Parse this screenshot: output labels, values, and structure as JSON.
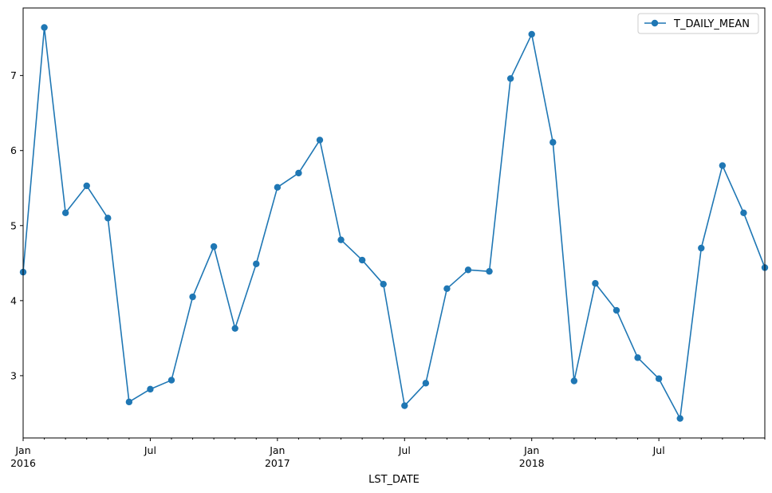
{
  "chart_data": {
    "type": "line",
    "xlabel": "LST_DATE",
    "ylabel": "",
    "x": [
      "2016-01",
      "2016-02",
      "2016-03",
      "2016-04",
      "2016-05",
      "2016-06",
      "2016-07",
      "2016-08",
      "2016-09",
      "2016-10",
      "2016-11",
      "2016-12",
      "2017-01",
      "2017-02",
      "2017-03",
      "2017-04",
      "2017-05",
      "2017-06",
      "2017-07",
      "2017-08",
      "2017-09",
      "2017-10",
      "2017-11",
      "2017-12",
      "2018-01",
      "2018-02",
      "2018-03",
      "2018-04",
      "2018-05",
      "2018-06",
      "2018-07",
      "2018-08",
      "2018-09",
      "2018-10",
      "2018-11",
      "2018-12"
    ],
    "series": [
      {
        "name": "T_DAILY_MEAN",
        "color": "#1f77b4",
        "marker": "circle",
        "values": [
          4.38,
          7.64,
          5.17,
          5.53,
          5.1,
          2.65,
          2.82,
          2.94,
          4.05,
          4.72,
          3.63,
          4.49,
          5.51,
          5.7,
          6.14,
          4.81,
          4.54,
          4.22,
          2.6,
          2.9,
          4.16,
          4.41,
          4.39,
          6.96,
          7.55,
          6.11,
          2.93,
          4.23,
          3.87,
          3.24,
          2.96,
          2.43,
          4.7,
          5.8,
          5.17,
          4.44
        ]
      }
    ],
    "ylim": [
      2.17,
      7.9
    ],
    "y_ticks": [
      3,
      4,
      5,
      6,
      7
    ],
    "x_major_ticks": [
      {
        "index": 0,
        "line1": "Jan",
        "line2": "2016"
      },
      {
        "index": 6,
        "line1": "Jul",
        "line2": ""
      },
      {
        "index": 12,
        "line1": "Jan",
        "line2": "2017"
      },
      {
        "index": 18,
        "line1": "Jul",
        "line2": ""
      },
      {
        "index": 24,
        "line1": "Jan",
        "line2": "2018"
      },
      {
        "index": 30,
        "line1": "Jul",
        "line2": ""
      }
    ],
    "grid": false,
    "legend": {
      "position": "top-right",
      "entries": [
        "T_DAILY_MEAN"
      ]
    }
  }
}
